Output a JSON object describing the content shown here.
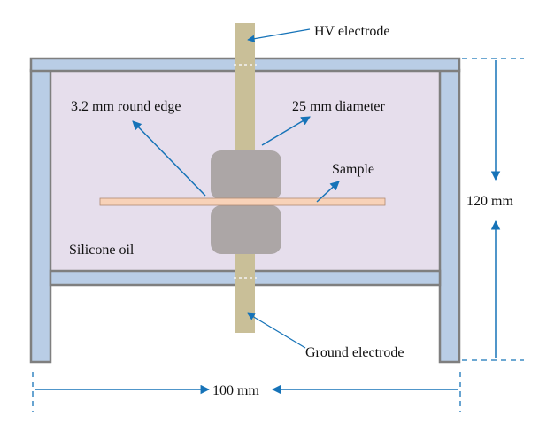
{
  "labels": {
    "hv_electrode": "HV electrode",
    "round_edge": "3.2 mm round edge",
    "diameter": "25 mm diameter",
    "sample": "Sample",
    "silicone_oil": "Silicone oil",
    "ground_electrode": "Ground electrode",
    "height": "120 mm",
    "width": "100 mm"
  },
  "colors": {
    "frame_fill": "#b9cde6",
    "frame_stroke": "#7f7f7f",
    "oil_fill": "#e6deec",
    "electrode_rod": "#c9bf98",
    "electrode_head": "#aca6a6",
    "sample": "#f8d2b8",
    "annotation_arrow": "#1673b8"
  }
}
